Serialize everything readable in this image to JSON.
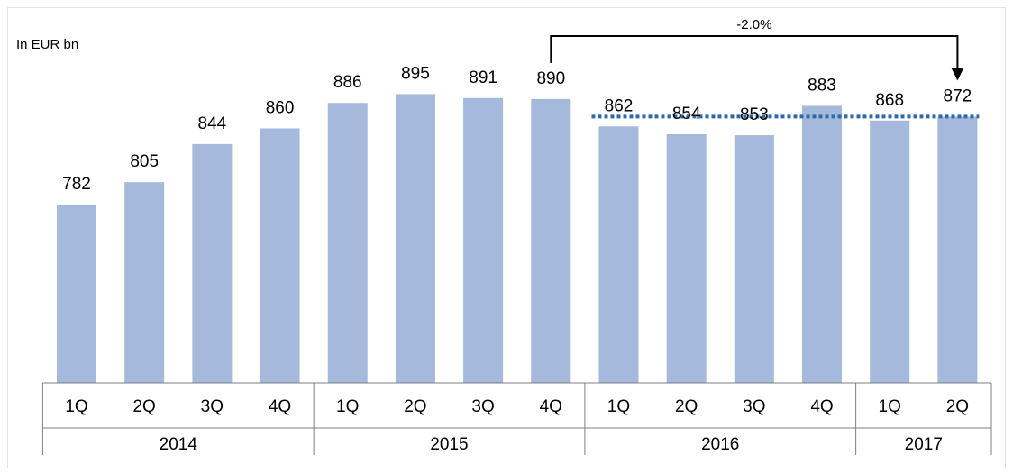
{
  "chart_data": {
    "type": "bar",
    "unit_label": "In EUR bn",
    "categories": [
      "1Q",
      "2Q",
      "3Q",
      "4Q",
      "1Q",
      "2Q",
      "3Q",
      "4Q",
      "1Q",
      "2Q",
      "3Q",
      "4Q",
      "1Q",
      "2Q"
    ],
    "category_groups": [
      {
        "label": "2014",
        "count": 4
      },
      {
        "label": "2015",
        "count": 4
      },
      {
        "label": "2016",
        "count": 4
      },
      {
        "label": "2017",
        "count": 2
      }
    ],
    "values": [
      782,
      805,
      844,
      860,
      886,
      895,
      891,
      890,
      862,
      854,
      853,
      883,
      868,
      872
    ],
    "color": "#a5b9dc",
    "ylim": [
      600,
      900
    ],
    "annotation": {
      "text": "-2.0%",
      "from": 7,
      "to": 13
    },
    "reference_line": {
      "from": 8,
      "to": 13,
      "color": "#2e6aa8"
    }
  }
}
